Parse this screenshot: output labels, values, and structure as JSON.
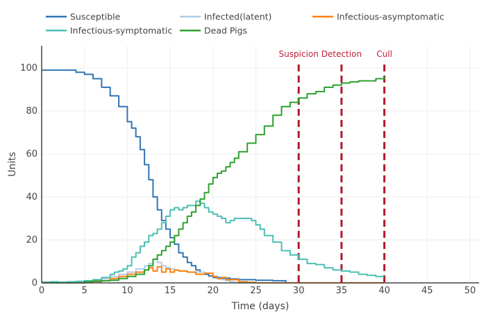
{
  "chart_data": {
    "type": "line",
    "title": "",
    "xlabel": "Time (days)",
    "ylabel": "Units",
    "xlim": [
      0,
      51
    ],
    "ylim": [
      0,
      110
    ],
    "xticks": [
      0,
      5,
      10,
      15,
      20,
      25,
      30,
      35,
      40,
      45,
      50
    ],
    "yticks": [
      0,
      20,
      40,
      60,
      80,
      100
    ],
    "grid": true,
    "legend_position": "top",
    "series": [
      {
        "name": "Susceptible",
        "color": "#3074b4",
        "x": [
          0,
          3,
          4,
          5,
          6,
          7,
          8,
          9,
          10,
          10.5,
          11,
          11.5,
          12,
          12.5,
          13,
          13.5,
          14,
          14.5,
          15,
          15.5,
          16,
          16.5,
          17,
          17.5,
          18,
          18.5,
          19,
          19.5,
          20,
          21,
          22,
          23,
          24,
          25,
          26,
          27,
          28,
          28.5
        ],
        "y": [
          99,
          99,
          98,
          97,
          95,
          91,
          87,
          82,
          75,
          72,
          68,
          62,
          55,
          48,
          40,
          34,
          29,
          25,
          21,
          18,
          14,
          12,
          9.5,
          8,
          6,
          5,
          4,
          3.2,
          2.5,
          2.2,
          1.8,
          1.5,
          1.5,
          1.2,
          1.2,
          1.0,
          1.0,
          0
        ]
      },
      {
        "name": "Infected(latent)",
        "color": "#aecde8",
        "x": [
          0,
          1,
          2,
          3,
          4,
          5,
          6,
          7,
          8,
          9,
          10,
          11,
          12,
          12.5,
          13,
          13.5,
          14,
          14.5,
          15,
          15.5,
          16,
          17,
          18,
          19,
          20,
          20.5,
          21,
          21.5,
          22,
          22.5,
          23,
          24,
          25,
          30,
          40
        ],
        "y": [
          0.5,
          0.3,
          0.4,
          0.2,
          0.5,
          0.8,
          1.2,
          2,
          3,
          4,
          5,
          6.5,
          8,
          9,
          11,
          9.5,
          8,
          7,
          6.5,
          6,
          5.5,
          5,
          5,
          4.5,
          3,
          2,
          1.5,
          1,
          0.5,
          0.3,
          0,
          0,
          0,
          0,
          0
        ]
      },
      {
        "name": "Infectious-asymptomatic",
        "color": "#ff7f0e",
        "x": [
          0,
          1,
          2,
          3,
          4,
          5,
          6,
          7,
          8,
          9,
          10,
          11,
          12,
          12.5,
          13,
          13.5,
          14,
          14.5,
          15,
          15.5,
          16,
          17,
          18,
          19,
          20,
          20.5,
          21,
          21.5,
          22,
          23,
          24,
          25,
          30,
          35,
          40
        ],
        "y": [
          0,
          0,
          0,
          0,
          0,
          0.2,
          0.6,
          1,
          2,
          3,
          4,
          5,
          6,
          7,
          5.5,
          7.5,
          5,
          6.5,
          5,
          6,
          5.5,
          5,
          4,
          4.5,
          3,
          2,
          2.5,
          1.5,
          1.5,
          0.5,
          0.3,
          0,
          0,
          0,
          0
        ]
      },
      {
        "name": "Infectious-symptomatic",
        "color": "#4abfb4",
        "x": [
          0,
          1,
          2,
          3,
          4,
          5,
          6,
          7,
          8,
          8.5,
          9,
          9.5,
          10,
          10.5,
          11,
          11.5,
          12,
          12.5,
          13,
          13.5,
          14,
          14.5,
          15,
          15.5,
          16,
          16.5,
          17,
          17.5,
          18,
          18.5,
          19,
          19.5,
          20,
          20.5,
          21,
          21.5,
          22,
          22.5,
          23,
          23.5,
          24,
          24.5,
          25,
          25.5,
          26,
          27,
          28,
          29,
          30,
          31,
          32,
          33,
          34,
          35,
          36,
          37,
          38,
          39,
          40
        ],
        "y": [
          0.2,
          0.5,
          0.3,
          0.5,
          0.7,
          1,
          1.5,
          2.5,
          4,
          5,
          5.5,
          6.5,
          8,
          12,
          14,
          17,
          19,
          22,
          23,
          25,
          28,
          31,
          34,
          35,
          34,
          35,
          36,
          36,
          38,
          37,
          35,
          33,
          32,
          31,
          30,
          28,
          29,
          30,
          30,
          30,
          30,
          29,
          27,
          25,
          22,
          19,
          15,
          13,
          11,
          9,
          8.5,
          7,
          6,
          5.5,
          5,
          4,
          3.5,
          3,
          3
        ]
      },
      {
        "name": "Dead Pigs",
        "color": "#2ca02c",
        "x": [
          0,
          1,
          2,
          3,
          4,
          5,
          6,
          7,
          8,
          9,
          10,
          11,
          12,
          12.5,
          13,
          13.5,
          14,
          14.5,
          15,
          15.5,
          16,
          16.5,
          17,
          17.5,
          18,
          18.5,
          19,
          19.5,
          20,
          20.5,
          21,
          21.5,
          22,
          22.5,
          23,
          24,
          25,
          26,
          27,
          28,
          29,
          30,
          31,
          32,
          33,
          34,
          35,
          36,
          37,
          38,
          38.5,
          39,
          40
        ],
        "y": [
          0,
          0,
          0,
          0,
          0,
          0.5,
          0.8,
          1,
          1.2,
          2,
          3,
          4,
          6,
          8,
          11,
          13,
          15,
          17,
          19,
          22,
          25,
          28,
          31,
          33,
          36,
          39,
          42,
          46,
          49,
          51,
          52,
          54,
          56,
          58,
          61,
          65,
          69,
          73,
          78,
          82,
          84,
          86,
          88,
          89,
          91,
          92,
          93,
          93.5,
          94,
          94,
          94,
          95,
          96
        ]
      }
    ],
    "vlines": [
      {
        "x": 30,
        "label": "Suspicion",
        "color": "#b2182b"
      },
      {
        "x": 35,
        "label": "Detection",
        "color": "#b2182b"
      },
      {
        "x": 40,
        "label": "Cull",
        "color": "#b2182b"
      }
    ]
  }
}
